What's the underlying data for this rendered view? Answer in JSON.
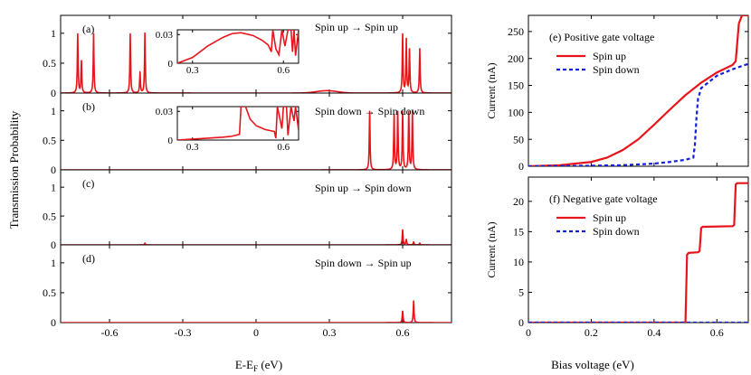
{
  "figure": {
    "left_ylabel": "Transmission Probability",
    "left_xlabel": "E-E",
    "left_xlabel_sub": "F",
    "left_xlabel_unit": " (eV)",
    "right_xlabel": "Bias voltage (eV)"
  },
  "chart_data": [
    {
      "type": "line",
      "panel_label": "(a)",
      "annotation": "Spin up → Spin up",
      "xlim": [
        -0.8,
        0.8
      ],
      "ylim": [
        0,
        1.3
      ],
      "xticks": [
        -0.6,
        -0.3,
        0,
        0.3,
        0.6
      ],
      "yticks": [
        0,
        0.5,
        1
      ],
      "tick_labels_x": [],
      "tick_labels_y": [
        "0",
        "0.5",
        "1"
      ],
      "series": [
        {
          "color": "#e8141b",
          "peaks": [
            [
              -0.73,
              1.0
            ],
            [
              -0.715,
              0.55
            ],
            [
              -0.665,
              1.0
            ],
            [
              -0.515,
              1.0
            ],
            [
              -0.475,
              0.35
            ],
            [
              -0.455,
              1.0
            ],
            [
              0.6,
              1.0
            ],
            [
              0.615,
              0.9
            ],
            [
              0.628,
              0.75
            ],
            [
              0.67,
              0.75
            ]
          ],
          "bumps": [
            [
              0.29,
              0.04,
              0.06
            ]
          ]
        }
      ],
      "inset": {
        "xlim": [
          0.25,
          0.65
        ],
        "ylim": [
          0,
          0.035
        ],
        "xticks": [
          0.3,
          0.6
        ],
        "yticks": [
          0,
          0.03
        ],
        "tick_labels_x": [
          "0.3",
          "0.6"
        ],
        "tick_labels_y": [
          "0",
          "0.03"
        ],
        "points": [
          [
            0.25,
            0.0
          ],
          [
            0.3,
            0.006
          ],
          [
            0.35,
            0.018
          ],
          [
            0.4,
            0.027
          ],
          [
            0.43,
            0.031
          ],
          [
            0.46,
            0.032
          ],
          [
            0.5,
            0.029
          ],
          [
            0.53,
            0.024
          ],
          [
            0.55,
            0.019
          ],
          [
            0.56,
            0.012
          ],
          [
            0.565,
            0.035
          ],
          [
            0.575,
            0.015
          ],
          [
            0.585,
            0.009
          ],
          [
            0.595,
            0.035
          ],
          [
            0.605,
            0.018
          ],
          [
            0.615,
            0.035
          ],
          [
            0.625,
            0.035
          ],
          [
            0.63,
            0.012
          ],
          [
            0.635,
            0.035
          ],
          [
            0.64,
            0.008
          ],
          [
            0.65,
            0.035
          ]
        ]
      }
    },
    {
      "type": "line",
      "panel_label": "(b)",
      "annotation": "Spin down → Spin down",
      "xlim": [
        -0.8,
        0.8
      ],
      "ylim": [
        0,
        1.3
      ],
      "xticks": [
        -0.6,
        -0.3,
        0,
        0.3,
        0.6
      ],
      "yticks": [
        0,
        0.5,
        1
      ],
      "tick_labels_x": [],
      "tick_labels_y": [
        "0",
        "0.5",
        "1"
      ],
      "series": [
        {
          "color": "#e8141b",
          "peaks": [
            [
              0.465,
              1.0
            ],
            [
              0.565,
              0.95
            ],
            [
              0.58,
              1.0
            ],
            [
              0.6,
              1.0
            ],
            [
              0.625,
              1.0
            ],
            [
              0.64,
              1.0
            ]
          ],
          "bumps": []
        }
      ],
      "inset": {
        "xlim": [
          0.25,
          0.65
        ],
        "ylim": [
          0,
          0.035
        ],
        "xticks": [
          0.3,
          0.6
        ],
        "yticks": [
          0,
          0.03
        ],
        "tick_labels_x": [
          "0.3",
          "0.6"
        ],
        "tick_labels_y": [
          "0",
          "0.03"
        ],
        "points": [
          [
            0.25,
            0.0
          ],
          [
            0.3,
            0.001
          ],
          [
            0.35,
            0.002
          ],
          [
            0.4,
            0.003
          ],
          [
            0.43,
            0.004
          ],
          [
            0.455,
            0.006
          ],
          [
            0.46,
            0.035
          ],
          [
            0.475,
            0.035
          ],
          [
            0.49,
            0.022
          ],
          [
            0.51,
            0.015
          ],
          [
            0.54,
            0.011
          ],
          [
            0.57,
            0.009
          ],
          [
            0.575,
            0.002
          ],
          [
            0.58,
            0.035
          ],
          [
            0.59,
            0.02
          ],
          [
            0.595,
            0.012
          ],
          [
            0.6,
            0.035
          ],
          [
            0.61,
            0.035
          ],
          [
            0.615,
            0.005
          ],
          [
            0.625,
            0.035
          ],
          [
            0.635,
            0.02
          ],
          [
            0.64,
            0.035
          ],
          [
            0.65,
            0.01
          ]
        ]
      }
    },
    {
      "type": "line",
      "panel_label": "(c)",
      "annotation": "Spin up → Spin down",
      "xlim": [
        -0.8,
        0.8
      ],
      "ylim": [
        0,
        1.3
      ],
      "xticks": [
        -0.6,
        -0.3,
        0,
        0.3,
        0.6
      ],
      "yticks": [
        0,
        0.5,
        1
      ],
      "tick_labels_x": [],
      "tick_labels_y": [
        "0",
        "0.5",
        "1"
      ],
      "series": [
        {
          "color": "#e8141b",
          "peaks": [
            [
              -0.455,
              0.03
            ],
            [
              0.6,
              0.27
            ],
            [
              0.615,
              0.1
            ],
            [
              0.645,
              0.05
            ],
            [
              0.67,
              0.03
            ]
          ],
          "bumps": []
        }
      ]
    },
    {
      "type": "line",
      "panel_label": "(d)",
      "annotation": "Spin down → Spin up",
      "xlim": [
        -0.8,
        0.8
      ],
      "ylim": [
        0,
        1.3
      ],
      "xticks": [
        -0.6,
        -0.3,
        0,
        0.3,
        0.6
      ],
      "yticks": [
        0,
        0.5,
        1
      ],
      "tick_labels_x": [
        "-0.6",
        "-0.3",
        "0",
        "0.3",
        "0.6"
      ],
      "tick_labels_y": [
        "0",
        "0.5",
        "1"
      ],
      "series": [
        {
          "color": "#e8141b",
          "peaks": [
            [
              0.6,
              0.2
            ],
            [
              0.645,
              0.37
            ]
          ],
          "bumps": []
        }
      ]
    },
    {
      "type": "line",
      "panel_label": "(e) Positive gate voltage",
      "xlim": [
        0,
        0.7
      ],
      "ylim": [
        0,
        280
      ],
      "xticks": [
        0,
        0.2,
        0.4,
        0.6
      ],
      "yticks": [
        0,
        50,
        100,
        150,
        200,
        250
      ],
      "tick_labels_x": [],
      "tick_labels_y": [
        "0",
        "50",
        "100",
        "150",
        "200",
        "250"
      ],
      "ylabel": "Current (nA)",
      "legend": {
        "position": "upper-left",
        "entries": [
          "Spin up",
          "Spin down"
        ]
      },
      "series": [
        {
          "name": "Spin up",
          "color": "#e8141b",
          "dash": "",
          "x": [
            0,
            0.1,
            0.2,
            0.25,
            0.3,
            0.35,
            0.4,
            0.45,
            0.5,
            0.55,
            0.6,
            0.65,
            0.66,
            0.67,
            0.68,
            0.7
          ],
          "y": [
            0,
            2,
            8,
            16,
            30,
            50,
            77,
            105,
            132,
            155,
            174,
            188,
            195,
            265,
            280,
            280
          ]
        },
        {
          "name": "Spin down",
          "color": "#1420d6",
          "dash": "4,3",
          "x": [
            0,
            0.1,
            0.2,
            0.3,
            0.4,
            0.45,
            0.5,
            0.525,
            0.53,
            0.535,
            0.54,
            0.55,
            0.6,
            0.65,
            0.7
          ],
          "y": [
            0,
            0.5,
            1,
            2,
            5,
            8,
            12,
            16,
            40,
            90,
            125,
            145,
            168,
            180,
            190
          ]
        }
      ]
    },
    {
      "type": "line",
      "panel_label": "(f) Negative gate voltage",
      "xlim": [
        0,
        0.7
      ],
      "ylim": [
        0,
        24
      ],
      "xticks": [
        0,
        0.2,
        0.4,
        0.6
      ],
      "yticks": [
        0,
        5,
        10,
        15,
        20
      ],
      "tick_labels_x": [
        "0",
        "0.2",
        "0.4",
        "0.6"
      ],
      "tick_labels_y": [
        "0",
        "5",
        "10",
        "15",
        "20"
      ],
      "ylabel": "Current (nA)",
      "legend": {
        "position": "upper-left",
        "entries": [
          "Spin up",
          "Spin down"
        ]
      },
      "series": [
        {
          "name": "Spin up",
          "color": "#e8141b",
          "dash": "",
          "x": [
            0,
            0.49,
            0.5,
            0.505,
            0.51,
            0.54,
            0.545,
            0.55,
            0.555,
            0.65,
            0.655,
            0.66,
            0.665,
            0.7
          ],
          "y": [
            0,
            0,
            0.05,
            11.2,
            11.5,
            11.6,
            11.8,
            15.6,
            15.8,
            15.9,
            16.1,
            22.8,
            23.0,
            23.0
          ]
        },
        {
          "name": "Spin down",
          "color": "#1420d6",
          "dash": "4,3",
          "x": [
            0,
            0.7
          ],
          "y": [
            0,
            0
          ]
        }
      ]
    }
  ]
}
